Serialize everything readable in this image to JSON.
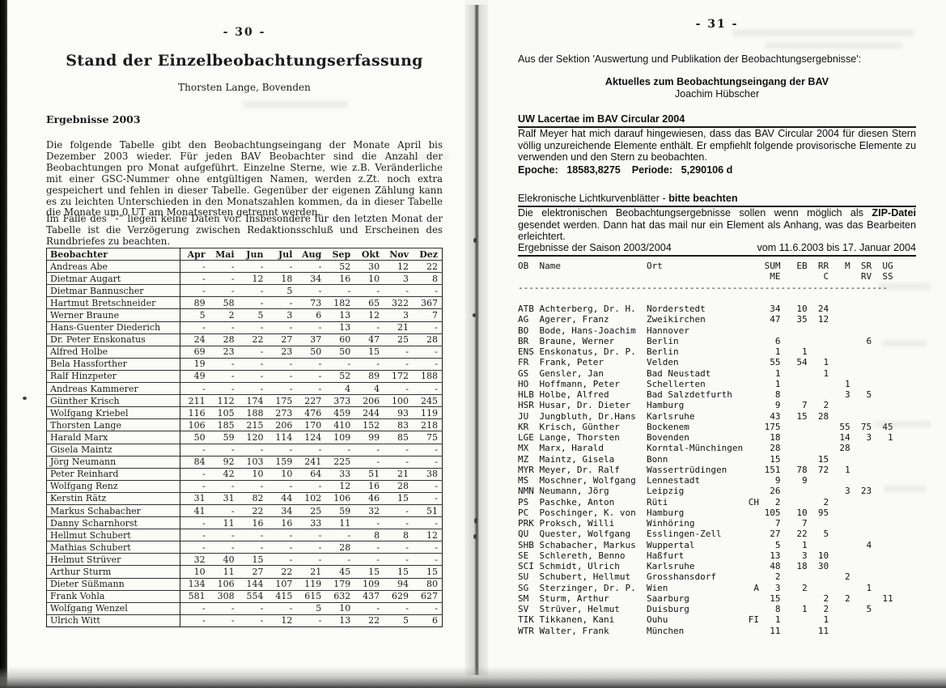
{
  "page_left": {
    "page_number": "-  30  -",
    "title": "Stand der Einzelbeobachtungserfassung",
    "byline": "Thorsten Lange, Bovenden",
    "section_heading": "Ergebnisse 2003",
    "paragraph1": "Die folgende Tabelle gibt den Beobachtungseingang der Monate April bis Dezember 2003 wieder. Für jeden BAV Beobachter sind die Anzahl der Beobachtungen pro Monat aufgeführt. Einzelne Sterne, wie z.B. Veränderliche mit einer GSC-Nummer ohne entgültigen Namen, werden z.Zt. noch extra gespeichert und fehlen in dieser Tabelle. Gegenüber der eigenen Zählung kann es zu leichten Unterschieden in den Monatszahlen kommen, da in dieser Tabelle die Monate um 0 UT am Monatsersten getrennt werden.",
    "paragraph2": "Im Falle des ”-” liegen keine Daten vor. Insbesondere für den letzten Monat der Tabelle ist die Verzögerung zwischen Redaktionsschluß und Erscheinen des Rundbriefes zu beachten.",
    "observer_table": {
      "headers": [
        "Beobachter",
        "Apr",
        "Mai",
        "Jun",
        "Jul",
        "Aug",
        "Sep",
        "Okt",
        "Nov",
        "Dez"
      ],
      "rows": [
        [
          "Andreas Abe",
          "-",
          "-",
          "-",
          "-",
          "-",
          "52",
          "30",
          "12",
          "22"
        ],
        [
          "Dietmar Augart",
          "-",
          "-",
          "12",
          "18",
          "34",
          "16",
          "10",
          "3",
          "8"
        ],
        [
          "Dietmar Bannuscher",
          "-",
          "-",
          "-",
          "5",
          "-",
          "-",
          "-",
          "-",
          "-"
        ],
        [
          "Hartmut Bretschneider",
          "89",
          "58",
          "-",
          "-",
          "73",
          "182",
          "65",
          "322",
          "367"
        ],
        [
          "Werner Braune",
          "5",
          "2",
          "5",
          "3",
          "6",
          "13",
          "12",
          "3",
          "7"
        ],
        [
          "Hans-Guenter Diederich",
          "-",
          "-",
          "-",
          "-",
          "-",
          "13",
          "-",
          "21",
          "-"
        ],
        [
          "Dr. Peter Enskonatus",
          "24",
          "28",
          "22",
          "27",
          "37",
          "60",
          "47",
          "25",
          "28"
        ],
        [
          "Alfred Holbe",
          "69",
          "23",
          "-",
          "23",
          "50",
          "50",
          "15",
          "-",
          "-"
        ],
        [
          "Bela Hassforther",
          "19",
          "-",
          "-",
          "-",
          "-",
          "-",
          "-",
          "-",
          "-"
        ],
        [
          "Ralf Hinzpeter",
          "49",
          "-",
          "-",
          "-",
          "-",
          "52",
          "89",
          "172",
          "188"
        ],
        [
          "Andreas Kammerer",
          "-",
          "-",
          "-",
          "-",
          "-",
          "4",
          "4",
          "-",
          "-"
        ],
        [
          "Günther Krisch",
          "211",
          "112",
          "174",
          "175",
          "227",
          "373",
          "206",
          "100",
          "245"
        ],
        [
          "Wolfgang Kriebel",
          "116",
          "105",
          "188",
          "273",
          "476",
          "459",
          "244",
          "93",
          "119"
        ],
        [
          "Thorsten Lange",
          "106",
          "185",
          "215",
          "206",
          "170",
          "410",
          "152",
          "83",
          "218"
        ],
        [
          "Harald Marx",
          "50",
          "59",
          "120",
          "114",
          "124",
          "109",
          "99",
          "85",
          "75"
        ],
        [
          "Gisela Maintz",
          "-",
          "-",
          "-",
          "-",
          "-",
          "-",
          "-",
          "-",
          "-"
        ],
        [
          "Jörg Neumann",
          "84",
          "92",
          "103",
          "159",
          "241",
          "225",
          "-",
          "-",
          "-"
        ],
        [
          "Peter Reinhard",
          "-",
          "42",
          "10",
          "10",
          "64",
          "33",
          "51",
          "21",
          "38"
        ],
        [
          "Wolfgang Renz",
          "-",
          "-",
          "-",
          "-",
          "-",
          "12",
          "16",
          "28",
          "-"
        ],
        [
          "Kerstin Rätz",
          "31",
          "31",
          "82",
          "44",
          "102",
          "106",
          "46",
          "15",
          "-"
        ],
        [
          "Markus Schabacher",
          "41",
          "-",
          "22",
          "34",
          "25",
          "59",
          "32",
          "-",
          "51"
        ],
        [
          "Danny Scharnhorst",
          "-",
          "11",
          "16",
          "16",
          "33",
          "11",
          "-",
          "-",
          "-"
        ],
        [
          "Hellmut Schubert",
          "-",
          "-",
          "-",
          "-",
          "-",
          "-",
          "8",
          "8",
          "12"
        ],
        [
          "Mathias Schubert",
          "-",
          "-",
          "-",
          "-",
          "-",
          "28",
          "-",
          "-",
          "-"
        ],
        [
          "Helmut Strüver",
          "32",
          "40",
          "15",
          "-",
          "-",
          "-",
          "-",
          "-",
          "-"
        ],
        [
          "Arthur Sturm",
          "10",
          "11",
          "27",
          "22",
          "21",
          "45",
          "15",
          "15",
          "15"
        ],
        [
          "Dieter Süßmann",
          "134",
          "106",
          "144",
          "107",
          "119",
          "179",
          "109",
          "94",
          "80"
        ],
        [
          "Frank Vohla",
          "581",
          "308",
          "554",
          "415",
          "615",
          "632",
          "437",
          "629",
          "627"
        ],
        [
          "Wolfgang Wenzel",
          "-",
          "-",
          "-",
          "-",
          "5",
          "10",
          "-",
          "-",
          "-"
        ],
        [
          "Ulrich Witt",
          "-",
          "-",
          "-",
          "12",
          "-",
          "13",
          "22",
          "5",
          "6"
        ]
      ]
    }
  },
  "page_right": {
    "page_number": "-  31  -",
    "intro": "Aus der Sektion 'Auswertung und Publikation der Beobachtungsergebnisse':",
    "article_title": "Aktuelles zum Beobachtungseingang der BAV",
    "article_author": "Joachim Hübscher",
    "section1": {
      "heading": "UW Lacertae im BAV Circular 2004",
      "body": "Ralf Meyer hat mich darauf hingewiesen, dass das BAV Circular 2004 für diesen Stern völlig unzureichende Elemente enthält. Er empfiehlt folgende provisorische Elemente zu verwenden und den Stern zu beobachten.",
      "epoche_label": "Epoche:",
      "epoche_value": "18583,8275",
      "periode_label": "Periode:",
      "periode_value": "5,290106 d"
    },
    "section2": {
      "heading_regular": "Elekronische Lichtkurvenblätter - ",
      "heading_bold": "bitte beachten",
      "body_pre": "Die elektronischen Beobachtungsergebnisse sollen wenn möglich als ",
      "body_bold": "ZIP-Datei",
      "body_post": " gesendet werden. Dann hat das mail nur ein Element als Anhang, was das Bearbeiten erleichtert."
    },
    "season_left": "Ergebnisse der Saison 2003/2004",
    "season_right": "vom 11.6.2003 bis 17. Januar 2004",
    "mono_table": {
      "header_row1": [
        "OB",
        "Name",
        "Ort",
        "SUM",
        "EB",
        "RR",
        "M",
        "SR",
        "UG"
      ],
      "header_row2": [
        "ME",
        "C",
        "RV",
        "SS"
      ],
      "rows": [
        [
          "ATB",
          "Achterberg, Dr. H.",
          "Norderstedt",
          "",
          "34",
          "10",
          "24",
          "",
          "",
          ""
        ],
        [
          "AG",
          "Agerer, Franz",
          "Zweikirchen",
          "",
          "47",
          "35",
          "12",
          "",
          "",
          ""
        ],
        [
          "BO",
          "Bode, Hans-Joachim",
          "Hannover",
          "",
          "",
          "",
          "",
          "",
          "",
          ""
        ],
        [
          "BR",
          "Braune, Werner",
          "Berlin",
          "",
          "6",
          "",
          "",
          "",
          "6",
          ""
        ],
        [
          "ENS",
          "Enskonatus, Dr. P.",
          "Berlin",
          "",
          "1",
          "1",
          "",
          "",
          "",
          ""
        ],
        [
          "FR",
          "Frank, Peter",
          "Velden",
          "",
          "55",
          "54",
          "1",
          "",
          "",
          ""
        ],
        [
          "GS",
          "Gensler, Jan",
          "Bad Neustadt",
          "",
          "1",
          "",
          "1",
          "",
          "",
          ""
        ],
        [
          "HO",
          "Hoffmann, Peter",
          "Schellerten",
          "",
          "1",
          "",
          "",
          "1",
          "",
          ""
        ],
        [
          "HLB",
          "Holbe, Alfred",
          "Bad Salzdetfurth",
          "",
          "8",
          "",
          "",
          "3",
          "5",
          ""
        ],
        [
          "HSR",
          "Husar, Dr. Dieter",
          "Hamburg",
          "",
          "9",
          "7",
          "2",
          "",
          "",
          ""
        ],
        [
          "JU",
          "Jungbluth, Dr.Hans",
          "Karlsruhe",
          "",
          "43",
          "15",
          "28",
          "",
          "",
          ""
        ],
        [
          "KR",
          "Krisch, Günther",
          "Bockenem",
          "",
          "175",
          "",
          "",
          "55",
          "75",
          "45"
        ],
        [
          "LGE",
          "Lange, Thorsten",
          "Bovenden",
          "",
          "18",
          "",
          "",
          "14",
          "3",
          "1"
        ],
        [
          "MX",
          "Marx, Harald",
          "Korntal-Münchingen",
          "",
          "28",
          "",
          "",
          "28",
          "",
          ""
        ],
        [
          "MZ",
          "Maintz, Gisela",
          "Bonn",
          "",
          "15",
          "",
          "15",
          "",
          "",
          ""
        ],
        [
          "MYR",
          "Meyer, Dr. Ralf",
          "Wassertrüdingen",
          "",
          "151",
          "78",
          "72",
          "1",
          "",
          ""
        ],
        [
          "MS",
          "Moschner, Wolfgang",
          "Lennestadt",
          "",
          "9",
          "9",
          "",
          "",
          "",
          ""
        ],
        [
          "NMN",
          "Neumann, Jörg",
          "Leipzig",
          "",
          "26",
          "",
          "",
          "3",
          "23",
          ""
        ],
        [
          "PS",
          "Paschke, Anton",
          "Rüti",
          "CH",
          "2",
          "",
          "2",
          "",
          "",
          ""
        ],
        [
          "PC",
          "Poschinger, K. von",
          "Hamburg",
          "",
          "105",
          "10",
          "95",
          "",
          "",
          ""
        ],
        [
          "PRK",
          "Proksch, Willi",
          "Winhöring",
          "",
          "7",
          "7",
          "",
          "",
          "",
          ""
        ],
        [
          "QU",
          "Quester, Wolfgang",
          "Esslingen-Zell",
          "",
          "27",
          "22",
          "5",
          "",
          "",
          ""
        ],
        [
          "SHB",
          "Schabacher, Markus",
          "Wuppertal",
          "",
          "5",
          "1",
          "",
          "",
          "4",
          ""
        ],
        [
          "SE",
          "Schlereth, Benno",
          "Haßfurt",
          "",
          "13",
          "3",
          "10",
          "",
          "",
          ""
        ],
        [
          "SCI",
          "Schmidt, Ulrich",
          "Karlsruhe",
          "",
          "48",
          "18",
          "30",
          "",
          "",
          ""
        ],
        [
          "SU",
          "Schubert, Hellmut",
          "Grosshansdorf",
          "",
          "2",
          "",
          "",
          "2",
          "",
          ""
        ],
        [
          "SG",
          "Sterzinger, Dr. P.",
          "Wien",
          "A",
          "3",
          "2",
          "",
          "",
          "1",
          ""
        ],
        [
          "SM",
          "Sturm, Arthur",
          "Saarburg",
          "",
          "15",
          "",
          "2",
          "2",
          "",
          "11"
        ],
        [
          "SV",
          "Strüver, Helmut",
          "Duisburg",
          "",
          "8",
          "1",
          "2",
          "",
          "5",
          ""
        ],
        [
          "TIK",
          "Tikkanen, Kani",
          "Ouhu",
          "FI",
          "1",
          "",
          "1",
          "",
          "",
          ""
        ],
        [
          "WTR",
          "Walter, Frank",
          "München",
          "",
          "11",
          "",
          "11",
          "",
          "",
          ""
        ]
      ]
    }
  }
}
